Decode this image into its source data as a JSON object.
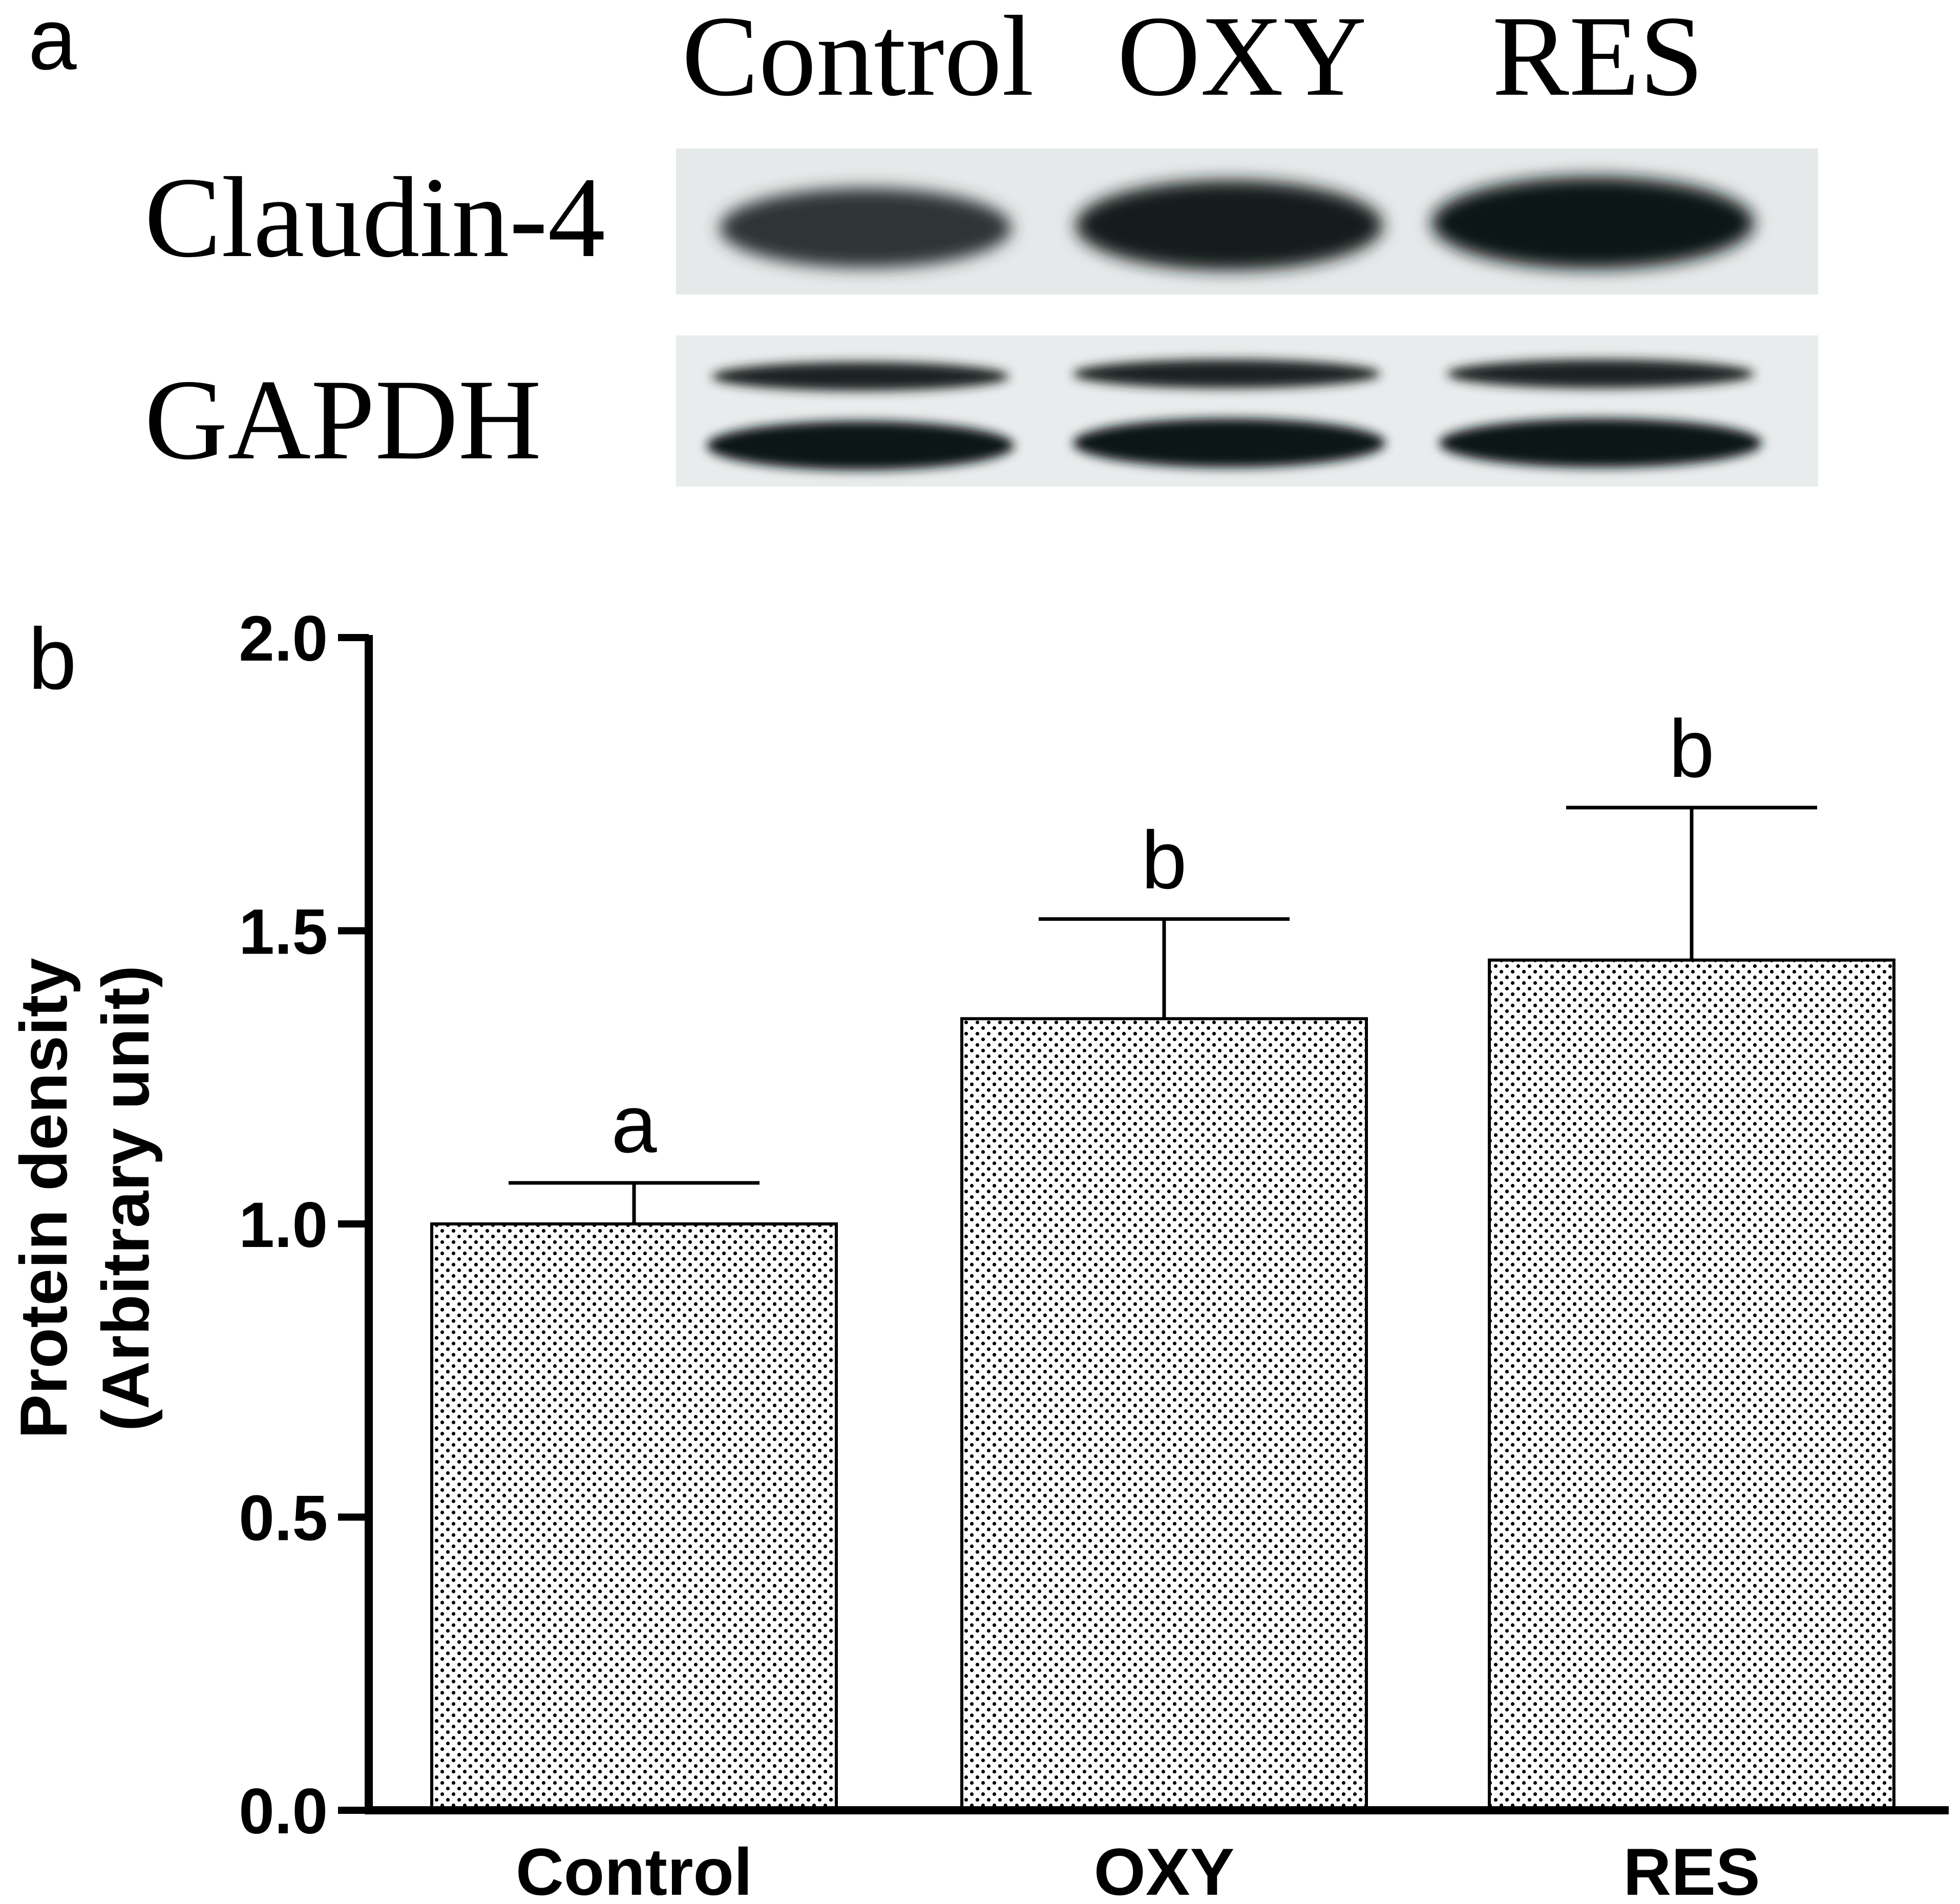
{
  "panel_a": {
    "letter": "a",
    "lane_labels": [
      "Control",
      "OXY",
      "RES"
    ],
    "row_labels": [
      "Claudin-4",
      "GAPDH"
    ]
  },
  "panel_b": {
    "letter": "b"
  },
  "chart_data": {
    "type": "bar",
    "title": "",
    "categories": [
      "Control",
      "OXY",
      "RES"
    ],
    "values": [
      1.0,
      1.35,
      1.45
    ],
    "error_upper": [
      0.07,
      0.17,
      0.26
    ],
    "significance_labels": [
      "a",
      "b",
      "b"
    ],
    "ylabel": "Protein density",
    "ylabel_line2": "(Arbitrary unit)",
    "xlabel": "",
    "ylim": [
      0,
      2.0
    ],
    "yticks": [
      "0.0",
      "0.5",
      "1.0",
      "1.5",
      "2.0"
    ],
    "grid": false,
    "legend": "none",
    "bar_fill": "stippled",
    "colors": {
      "bar_edge": "#000000",
      "bar_dots": "#000000",
      "background": "#ffffff"
    }
  }
}
